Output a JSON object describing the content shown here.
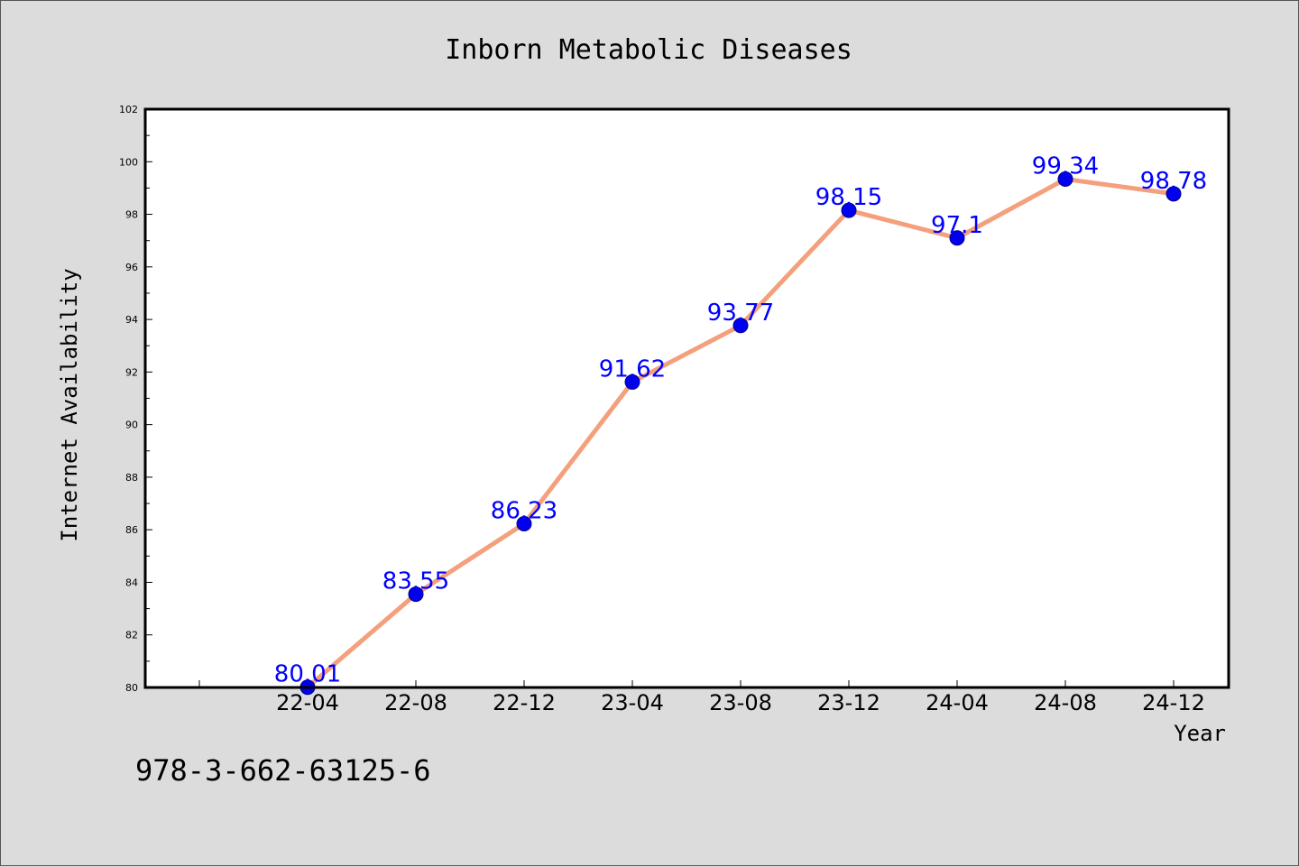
{
  "chart_data": {
    "type": "line",
    "title": "Inborn Metabolic Diseases",
    "xlabel": "Year",
    "ylabel": "Internet Availability",
    "categories": [
      "22-04",
      "22-08",
      "22-12",
      "23-04",
      "23-08",
      "23-12",
      "24-04",
      "24-08",
      "24-12"
    ],
    "series": [
      {
        "values": [
          80.01,
          83.55,
          86.23,
          91.62,
          93.77,
          98.15,
          97.1,
          99.34,
          98.78
        ],
        "labels": [
          "80.01",
          "83.55",
          "86.23",
          "91.62",
          "93.77",
          "98.15",
          "97.1",
          "99.34",
          "98.78"
        ]
      }
    ],
    "ylim": [
      80,
      102
    ],
    "yticks": [
      "80",
      "82",
      "84",
      "86",
      "88",
      "90",
      "92",
      "94",
      "96",
      "98",
      "100",
      "102"
    ],
    "grid": false,
    "legend": "none",
    "colors": {
      "line": "#f4a07c",
      "marker": "#0000ee",
      "label": "#0000ff",
      "plot_background": "#ffffff",
      "figure_background": "#dcdcdc"
    }
  },
  "footnote": "978-3-662-63125-6"
}
